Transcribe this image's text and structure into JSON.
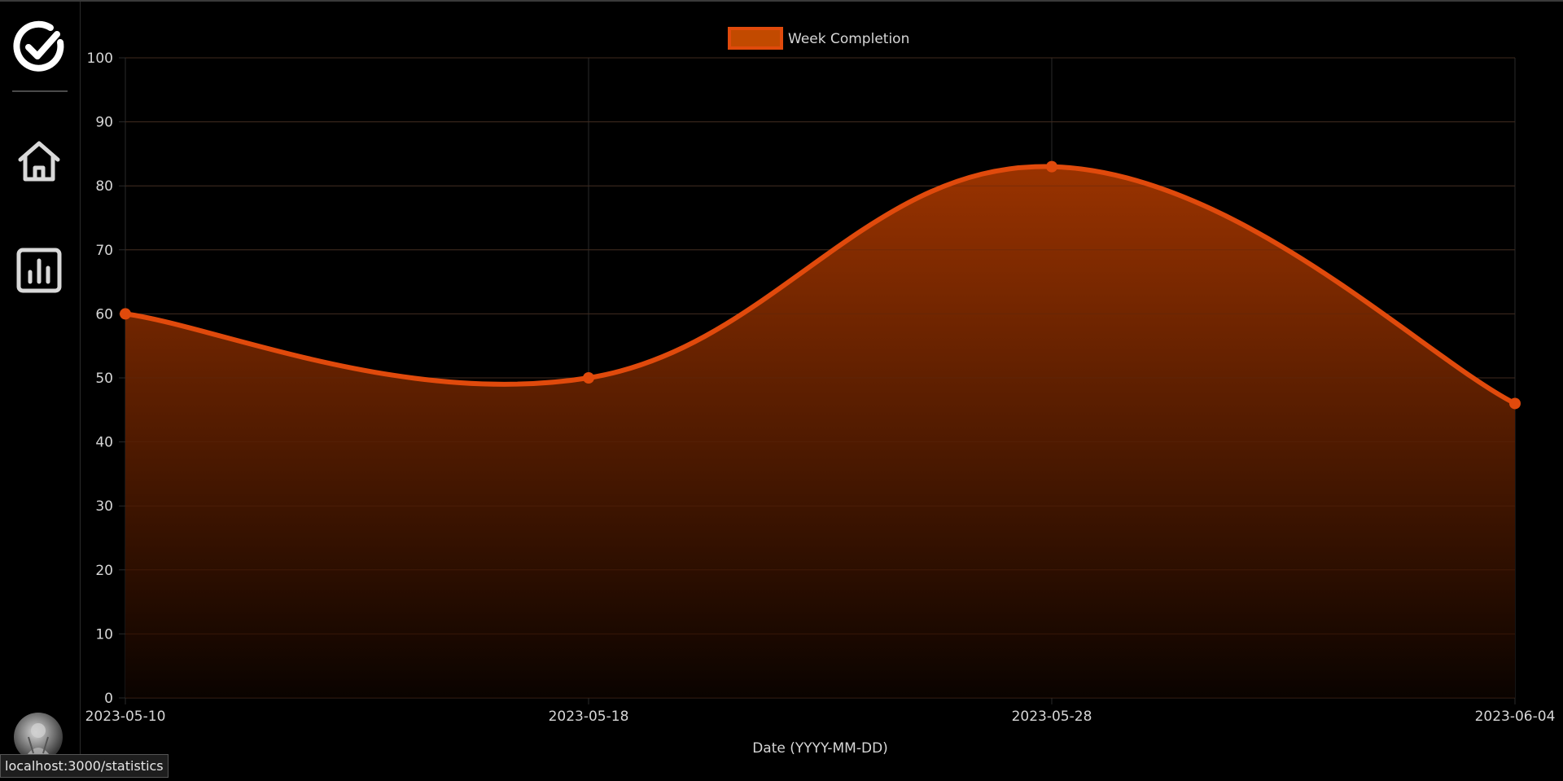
{
  "sidebar": {
    "items": [
      {
        "name": "home",
        "icon": "home-icon"
      },
      {
        "name": "statistics",
        "icon": "bar-chart-icon"
      }
    ],
    "logo_icon": "check-circle-icon",
    "avatar_icon": "user-avatar"
  },
  "status_bar": {
    "url": "localhost:3000/statistics"
  },
  "colors": {
    "background": "#000000",
    "accent": "#e04a0c",
    "fill_top": "#9a3300",
    "grid": "#2a2a2a",
    "text": "#d6d6d6"
  },
  "chart_data": {
    "type": "line",
    "title": "",
    "xlabel": "Date (YYYY-MM-DD)",
    "ylabel": "",
    "ylim": [
      0,
      100
    ],
    "yticks": [
      0,
      10,
      20,
      30,
      40,
      50,
      60,
      70,
      80,
      90,
      100
    ],
    "categories": [
      "2023-05-10",
      "2023-05-18",
      "2023-05-28",
      "2023-06-04"
    ],
    "legend_position": "top-center",
    "grid": true,
    "series": [
      {
        "name": "Week Completion",
        "values": [
          60,
          50,
          83,
          46
        ],
        "fill": true,
        "smooth": true,
        "color": "#e04a0c"
      }
    ]
  }
}
